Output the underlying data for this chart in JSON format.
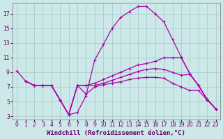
{
  "bg_color": "#cce8e8",
  "grid_color": "#aacccc",
  "line_color": "#aa00aa",
  "xlabel": "Windchill (Refroidissement éolien,°C)",
  "x_ticks": [
    0,
    1,
    2,
    3,
    4,
    5,
    6,
    7,
    8,
    9,
    10,
    11,
    12,
    13,
    14,
    15,
    16,
    17,
    18,
    19,
    20,
    21,
    22,
    23
  ],
  "y_ticks": [
    3,
    5,
    7,
    9,
    11,
    13,
    15,
    17
  ],
  "xlim": [
    -0.5,
    23.5
  ],
  "ylim": [
    2.5,
    18.5
  ],
  "lines": [
    {
      "x": [
        0,
        1,
        2,
        3,
        4,
        5,
        6,
        7,
        8,
        9,
        10,
        11,
        12,
        13,
        14,
        15,
        16,
        17,
        18,
        19,
        20,
        21,
        22,
        23
      ],
      "y": [
        9.2,
        7.8,
        7.2,
        7.2,
        7.2,
        5.2,
        3.2,
        3.5,
        5.8,
        10.7,
        12.8,
        15.0,
        16.5,
        17.3,
        18.0,
        18.0,
        17.0,
        15.9,
        13.5,
        11.1,
        8.8,
        7.2,
        5.3,
        4.0
      ]
    },
    {
      "x": [
        1,
        2,
        3,
        4,
        5,
        6,
        7,
        8,
        9,
        10,
        11,
        12,
        13,
        14,
        15,
        16,
        17,
        18,
        19,
        20,
        21,
        22,
        23
      ],
      "y": [
        7.8,
        7.2,
        7.2,
        7.2,
        5.2,
        3.2,
        7.2,
        7.2,
        7.5,
        8.0,
        8.5,
        9.0,
        9.5,
        10.0,
        10.2,
        10.5,
        11.0,
        11.0,
        11.0,
        8.8,
        7.2,
        5.3,
        4.0
      ]
    },
    {
      "x": [
        1,
        2,
        3,
        4,
        5,
        6,
        7,
        8,
        9,
        10,
        11,
        12,
        13,
        14,
        15,
        16,
        17,
        18,
        19,
        20,
        21,
        22,
        23
      ],
      "y": [
        7.8,
        7.2,
        7.2,
        7.2,
        5.2,
        3.2,
        7.2,
        7.2,
        7.2,
        7.5,
        7.9,
        8.3,
        8.7,
        9.1,
        9.4,
        9.5,
        9.4,
        9.0,
        8.6,
        8.7,
        7.2,
        5.3,
        4.0
      ]
    },
    {
      "x": [
        1,
        2,
        3,
        4,
        5,
        6,
        7,
        8,
        9,
        10,
        11,
        12,
        13,
        14,
        15,
        16,
        17,
        18,
        19,
        20,
        21,
        22,
        23
      ],
      "y": [
        7.8,
        7.2,
        7.2,
        7.2,
        5.2,
        3.2,
        7.2,
        6.0,
        7.0,
        7.3,
        7.5,
        7.7,
        8.0,
        8.2,
        8.3,
        8.3,
        8.2,
        7.5,
        7.0,
        6.5,
        6.5,
        5.2,
        4.0
      ]
    }
  ],
  "marker": "+",
  "marker_size": 3,
  "linewidth": 0.9,
  "tick_fontsize": 5.5,
  "xlabel_fontsize": 6.5
}
